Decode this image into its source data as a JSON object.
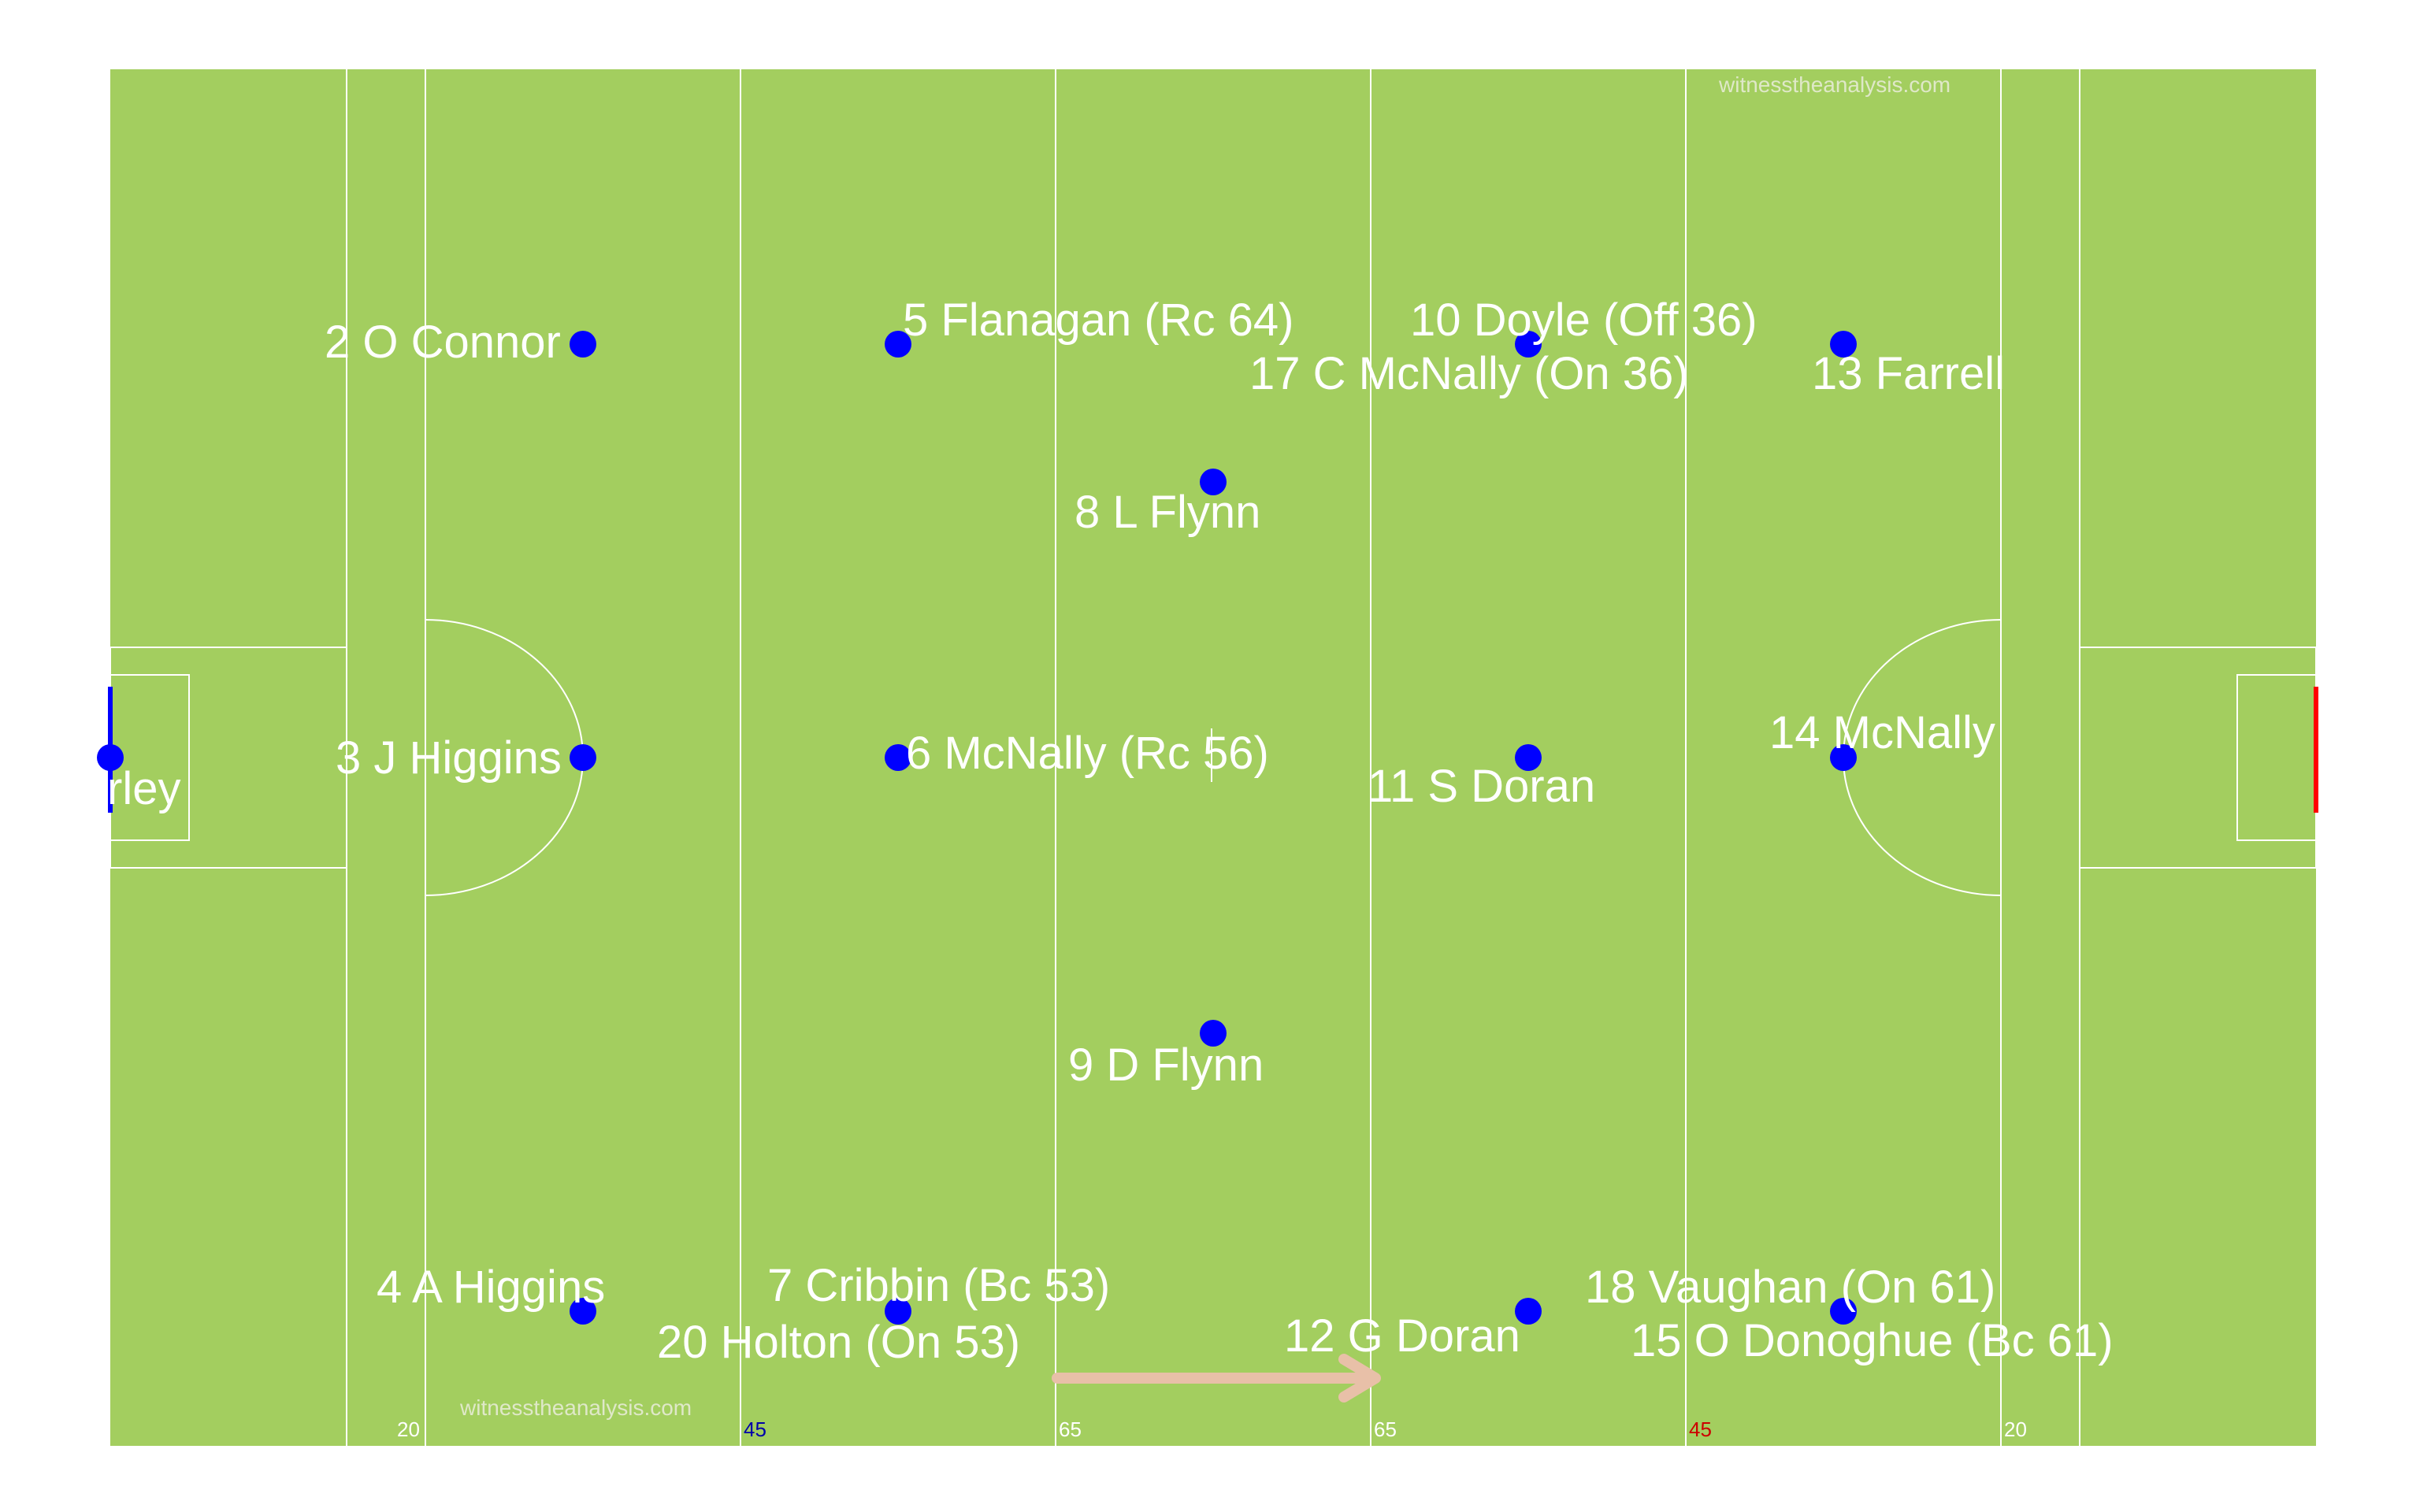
{
  "watermark": "witnesstheanalysis.com",
  "colors": {
    "pitch": "#a3ce5f",
    "lines": "#ffffff",
    "player_dot": "#0000ff",
    "left_goal": "#0000ff",
    "right_goal": "#ff0000",
    "direction_arrow": "#e8c0a8",
    "label_home": "#ffffff",
    "label_blue": "#0000aa",
    "label_red": "#cc0000"
  },
  "distance_labels": {
    "left_20": "20",
    "left_45": "45",
    "left_65": "65",
    "right_65": "65",
    "right_45": "45",
    "right_20": "20"
  },
  "players": [
    {
      "id": "p1",
      "label": "rley"
    },
    {
      "id": "p2",
      "label": "2 O Connor"
    },
    {
      "id": "p3",
      "label": "3 J Higgins"
    },
    {
      "id": "p4",
      "label": "4 A Higgins"
    },
    {
      "id": "p5",
      "label": "5 Flanagan (Rc 64)"
    },
    {
      "id": "p6",
      "label": "6 McNally (Rc 56)"
    },
    {
      "id": "p7",
      "label": "7 Cribbin (Bc 53)"
    },
    {
      "id": "p7b",
      "label": "20 Holton (On 53)"
    },
    {
      "id": "p8",
      "label": "8 L Flynn"
    },
    {
      "id": "p9",
      "label": "9 D Flynn"
    },
    {
      "id": "p10",
      "label": "10 Doyle (Off 36)"
    },
    {
      "id": "p10b",
      "label": "17 C McNally (On 36)"
    },
    {
      "id": "p11",
      "label": "11 S Doran"
    },
    {
      "id": "p12",
      "label": "12 G Doran"
    },
    {
      "id": "p13",
      "label": "13 Farrell"
    },
    {
      "id": "p14",
      "label": "14 McNally"
    },
    {
      "id": "p15",
      "label": "18 Vaughan (On 61)"
    },
    {
      "id": "p15b",
      "label": "15 O Donoghue (Bc 61)"
    }
  ]
}
